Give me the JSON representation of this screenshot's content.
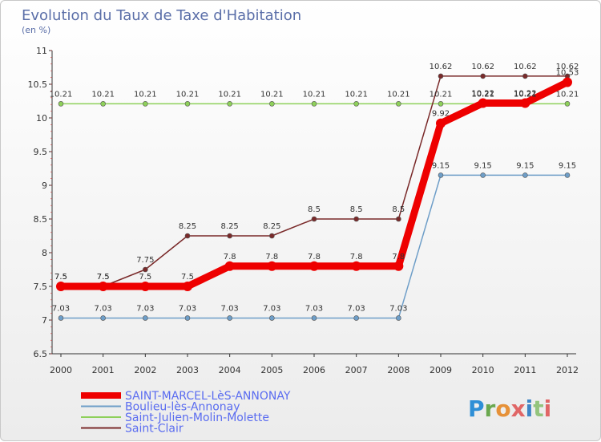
{
  "title": "Evolution du Taux de Taxe d'Habitation",
  "subtitle": "(en %)",
  "logo": {
    "text": "Proxiti",
    "letters": [
      "P",
      "r",
      "o",
      "x",
      "i",
      "t",
      "i"
    ],
    "colors": [
      "#2f8fd6",
      "#6aa84f",
      "#e69138",
      "#e06666",
      "#3d85c6",
      "#93c47d",
      "#e06666"
    ]
  },
  "chart_data": {
    "type": "line",
    "title": "Evolution du Taux de Taxe d'Habitation",
    "ylabel": "(en %)",
    "xlabel": "",
    "x": [
      "2000",
      "2001",
      "2002",
      "2003",
      "2004",
      "2005",
      "2006",
      "2007",
      "2008",
      "2009",
      "2010",
      "2011",
      "2012"
    ],
    "ylim": [
      6.5,
      11
    ],
    "yticks": [
      "6.5",
      "7",
      "7.5",
      "8",
      "8.5",
      "9",
      "9.5",
      "10",
      "10.5",
      "11"
    ],
    "grid": false,
    "legend": "bottom-left",
    "series": [
      {
        "name": "SAINT-MARCEL-LèS-ANNONAY",
        "color": "#ee0000",
        "width": 9,
        "values": [
          7.5,
          7.5,
          7.5,
          7.5,
          7.8,
          7.8,
          7.8,
          7.8,
          7.8,
          9.92,
          10.22,
          10.22,
          10.53
        ],
        "labels": [
          "7.5",
          "7.5",
          "7.5",
          "7.5",
          "7.8",
          "7.8",
          "7.8",
          "7.8",
          "7.8",
          "9.92",
          "10.22",
          "10.22",
          "10.53"
        ]
      },
      {
        "name": "Boulieu-lès-Annonay",
        "color": "#6e9ec8",
        "width": 1.5,
        "values": [
          7.03,
          7.03,
          7.03,
          7.03,
          7.03,
          7.03,
          7.03,
          7.03,
          7.03,
          9.15,
          9.15,
          9.15,
          9.15
        ],
        "labels": [
          "7.03",
          "7.03",
          "7.03",
          "7.03",
          "7.03",
          "7.03",
          "7.03",
          "7.03",
          "7.03",
          "9.15",
          "9.15",
          "9.15",
          "9.15"
        ]
      },
      {
        "name": "Saint-Julien-Molin-Molette",
        "color": "#8ed05a",
        "width": 1.5,
        "values": [
          10.21,
          10.21,
          10.21,
          10.21,
          10.21,
          10.21,
          10.21,
          10.21,
          10.21,
          10.21,
          10.21,
          10.21,
          10.21
        ],
        "labels": [
          "10.21",
          "10.21",
          "10.21",
          "10.21",
          "10.21",
          "10.21",
          "10.21",
          "10.21",
          "10.21",
          "10.21",
          "10.21",
          "10.21",
          "10.21"
        ]
      },
      {
        "name": "Saint-Clair",
        "color": "#7a2a2a",
        "width": 1.5,
        "values": [
          7.5,
          7.5,
          7.75,
          8.25,
          8.25,
          8.25,
          8.5,
          8.5,
          8.5,
          10.62,
          10.62,
          10.62,
          10.62
        ],
        "labels": [
          "7.5",
          "7.5",
          "7.75",
          "8.25",
          "8.25",
          "8.25",
          "8.5",
          "8.5",
          "8.5",
          "10.62",
          "10.62",
          "10.62",
          "10.62"
        ]
      }
    ]
  }
}
